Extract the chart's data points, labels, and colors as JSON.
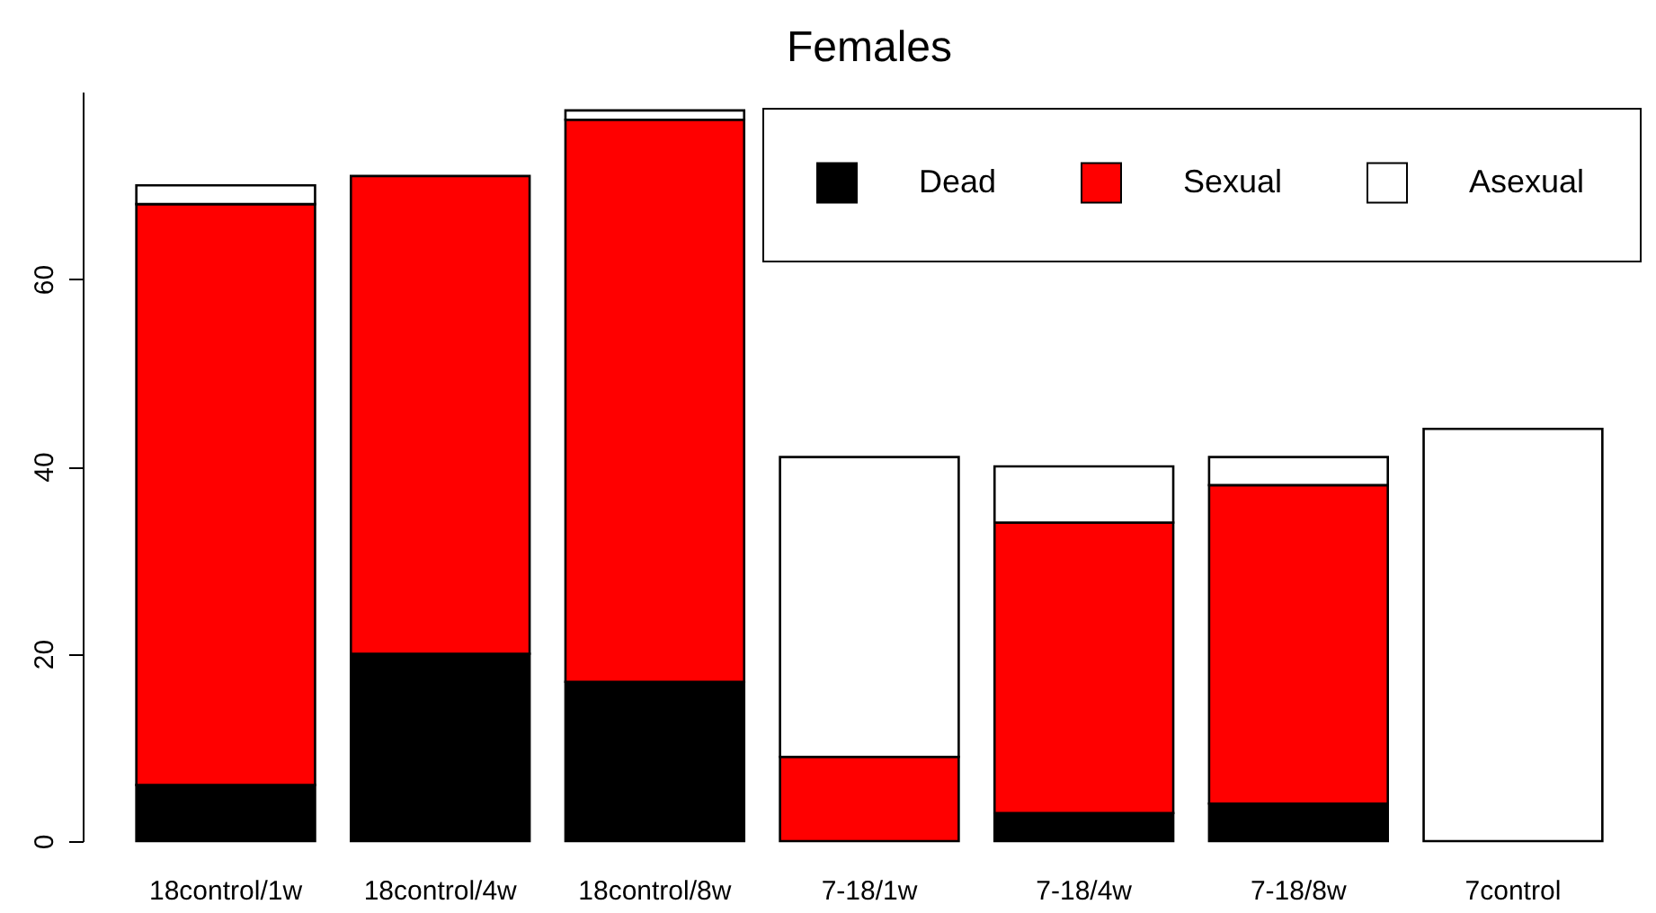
{
  "chart_data": {
    "type": "bar",
    "title": "Females",
    "categories": [
      "18control/1w",
      "18control/4w",
      "18control/8w",
      "7-18/1w",
      "7-18/4w",
      "7-18/8w",
      "7control"
    ],
    "series": [
      {
        "name": "Dead",
        "color": "#000000",
        "values": [
          6,
          20,
          17,
          0,
          3,
          4,
          0
        ]
      },
      {
        "name": "Sexual",
        "color": "#ff0000",
        "values": [
          62,
          51,
          60,
          9,
          31,
          34,
          0
        ]
      },
      {
        "name": "Asexual",
        "color": "#ffffff",
        "values": [
          2,
          0,
          1,
          32,
          6,
          3,
          44
        ]
      }
    ],
    "stacked": true,
    "ylim": [
      0,
      80
    ],
    "yticks": [
      0,
      20,
      40,
      60
    ],
    "legend": "top right"
  }
}
